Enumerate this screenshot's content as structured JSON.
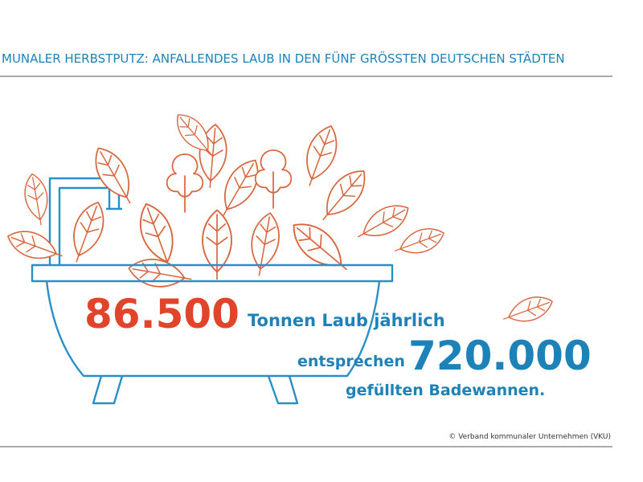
{
  "header": {
    "title": "MUNALER HERBSTPUTZ: ANFALLENDES LAUB IN DEN FÜNF GRÖSSTEN DEUTSCHEN STÄDTEN"
  },
  "figures": {
    "amount": "86.500",
    "amount_text": "Tonnen Laub jährlich",
    "comparison_text": "entsprechen",
    "equivalent": "720.000",
    "equivalent_text": "gefüllten Badewannen."
  },
  "footer": {
    "credit": "© Verband kommunaler Unternehmen (VKU)"
  }
}
